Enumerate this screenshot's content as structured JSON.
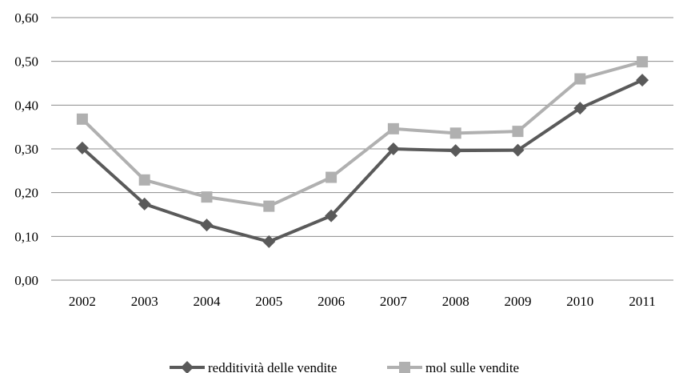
{
  "chart_data": {
    "type": "line",
    "title": "",
    "xlabel": "",
    "ylabel": "",
    "categories": [
      "2002",
      "2003",
      "2004",
      "2005",
      "2006",
      "2007",
      "2008",
      "2009",
      "2010",
      "2011"
    ],
    "ylim": [
      0,
      0.6
    ],
    "yticks": [
      0,
      0.1,
      0.2,
      0.3,
      0.4,
      0.5,
      0.6
    ],
    "ytick_labels": [
      "0,00",
      "0,10",
      "0,20",
      "0,30",
      "0,40",
      "0,50",
      "0,60"
    ],
    "grid": "horizontal",
    "legend_position": "bottom",
    "series": [
      {
        "name": "redditività delle vendite",
        "color": "#5a5a5a",
        "marker": "diamond",
        "values": [
          0.302,
          0.174,
          0.126,
          0.088,
          0.147,
          0.3,
          0.296,
          0.297,
          0.393,
          0.457
        ]
      },
      {
        "name": "mol sulle vendite",
        "color": "#b0b0b0",
        "marker": "square",
        "values": [
          0.368,
          0.229,
          0.19,
          0.169,
          0.235,
          0.346,
          0.336,
          0.34,
          0.46,
          0.499
        ]
      }
    ]
  }
}
